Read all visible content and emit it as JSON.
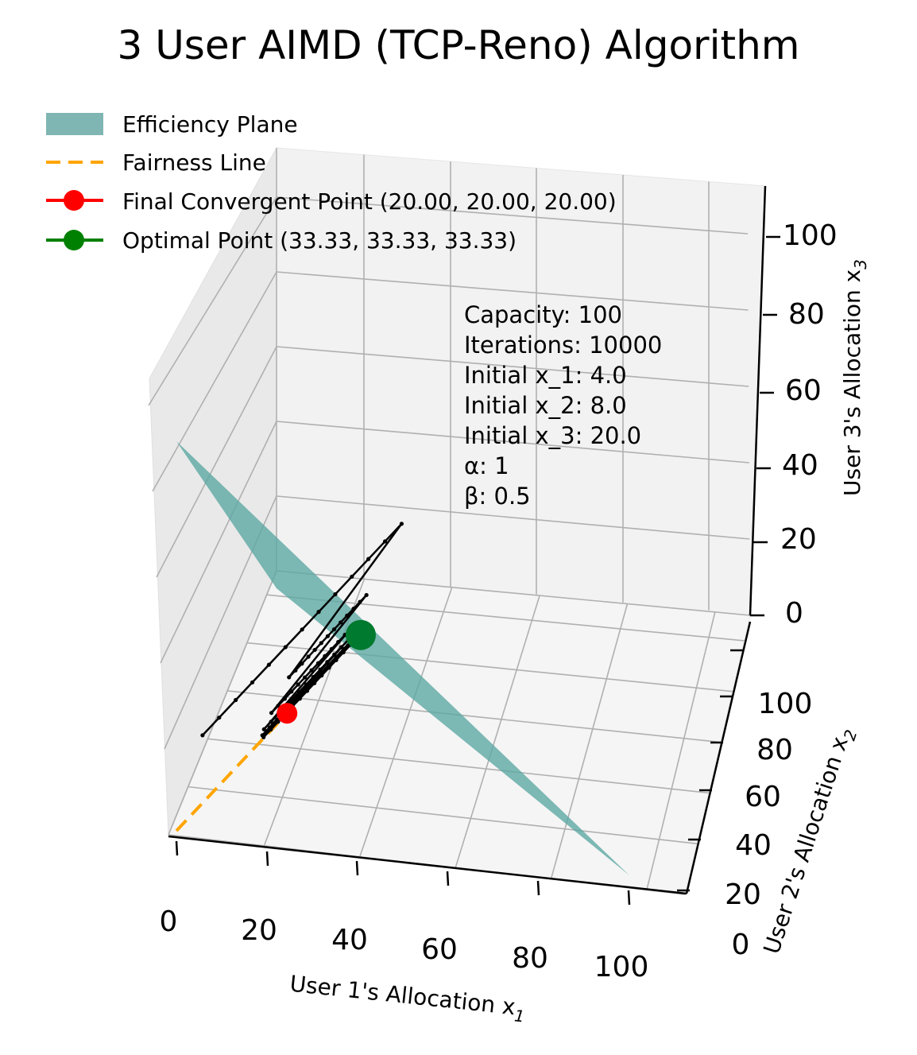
{
  "chart_data": {
    "type": "3d-line",
    "title": "3 User AIMD (TCP-Reno) Algorithm",
    "xlabel": "User 1's Allocation x",
    "xlabel_sub": "1",
    "ylabel": "User 2's Allocation x",
    "ylabel_sub": "2",
    "zlabel": "User 3's Allocation x",
    "zlabel_sub": "3",
    "xlim": [
      0,
      110
    ],
    "ylim": [
      0,
      110
    ],
    "zlim": [
      0,
      110
    ],
    "xticks": [
      "0",
      "20",
      "40",
      "60",
      "80",
      "100"
    ],
    "yticks": [
      "0",
      "20",
      "40",
      "60",
      "80",
      "100"
    ],
    "zticks": [
      "0",
      "20",
      "40",
      "60",
      "80",
      "100"
    ],
    "grid": true,
    "legend": [
      {
        "label": "Efficiency Plane",
        "kind": "patch",
        "color": "#7fb5b2"
      },
      {
        "label": "Fairness Line",
        "kind": "dashed",
        "color": "#ffa500"
      },
      {
        "label": "Final Convergent Point (20.00, 20.00, 20.00)",
        "kind": "marker",
        "color": "#ff0000"
      },
      {
        "label": "Optimal Point (33.33, 33.33, 33.33)",
        "kind": "marker",
        "color": "#008000"
      }
    ],
    "legend_position": "top-left",
    "efficiency_plane": {
      "capacity": 100,
      "color": "#5aa6a2"
    },
    "fairness_line": {
      "from": [
        0,
        0,
        0
      ],
      "to": [
        20,
        20,
        20
      ],
      "color": "#ffa500"
    },
    "final_point": [
      20,
      20,
      20
    ],
    "optimal_point": [
      33.33,
      33.33,
      33.33
    ],
    "trajectory": {
      "color": "#000000",
      "cycles": [
        {
          "start": [
            4,
            8,
            20
          ],
          "end": [
            40,
            44,
            56
          ]
        },
        {
          "start": [
            20,
            22,
            28
          ],
          "end": [
            34,
            36,
            42
          ]
        },
        {
          "start": [
            17,
            18,
            21
          ],
          "end": [
            31.5,
            32.5,
            35.5
          ]
        },
        {
          "start": [
            15.75,
            16.25,
            17.75
          ],
          "end": [
            31,
            31.5,
            33
          ]
        },
        {
          "start": [
            15.5,
            15.75,
            16.5
          ],
          "end": [
            31.5,
            31.75,
            32.5
          ]
        },
        {
          "start": [
            15.75,
            15.875,
            16.25
          ],
          "end": [
            31.5,
            31.625,
            32
          ]
        },
        {
          "start": [
            15.75,
            15.8,
            16
          ],
          "end": [
            31.5,
            31.55,
            31.75
          ]
        }
      ]
    },
    "annotations": [
      "Capacity: 100",
      "Iterations: 10000",
      "Initial x_1: 4.0",
      "Initial x_2: 8.0",
      "Initial x_3: 20.0",
      "α: 1",
      "β: 0.5"
    ]
  }
}
